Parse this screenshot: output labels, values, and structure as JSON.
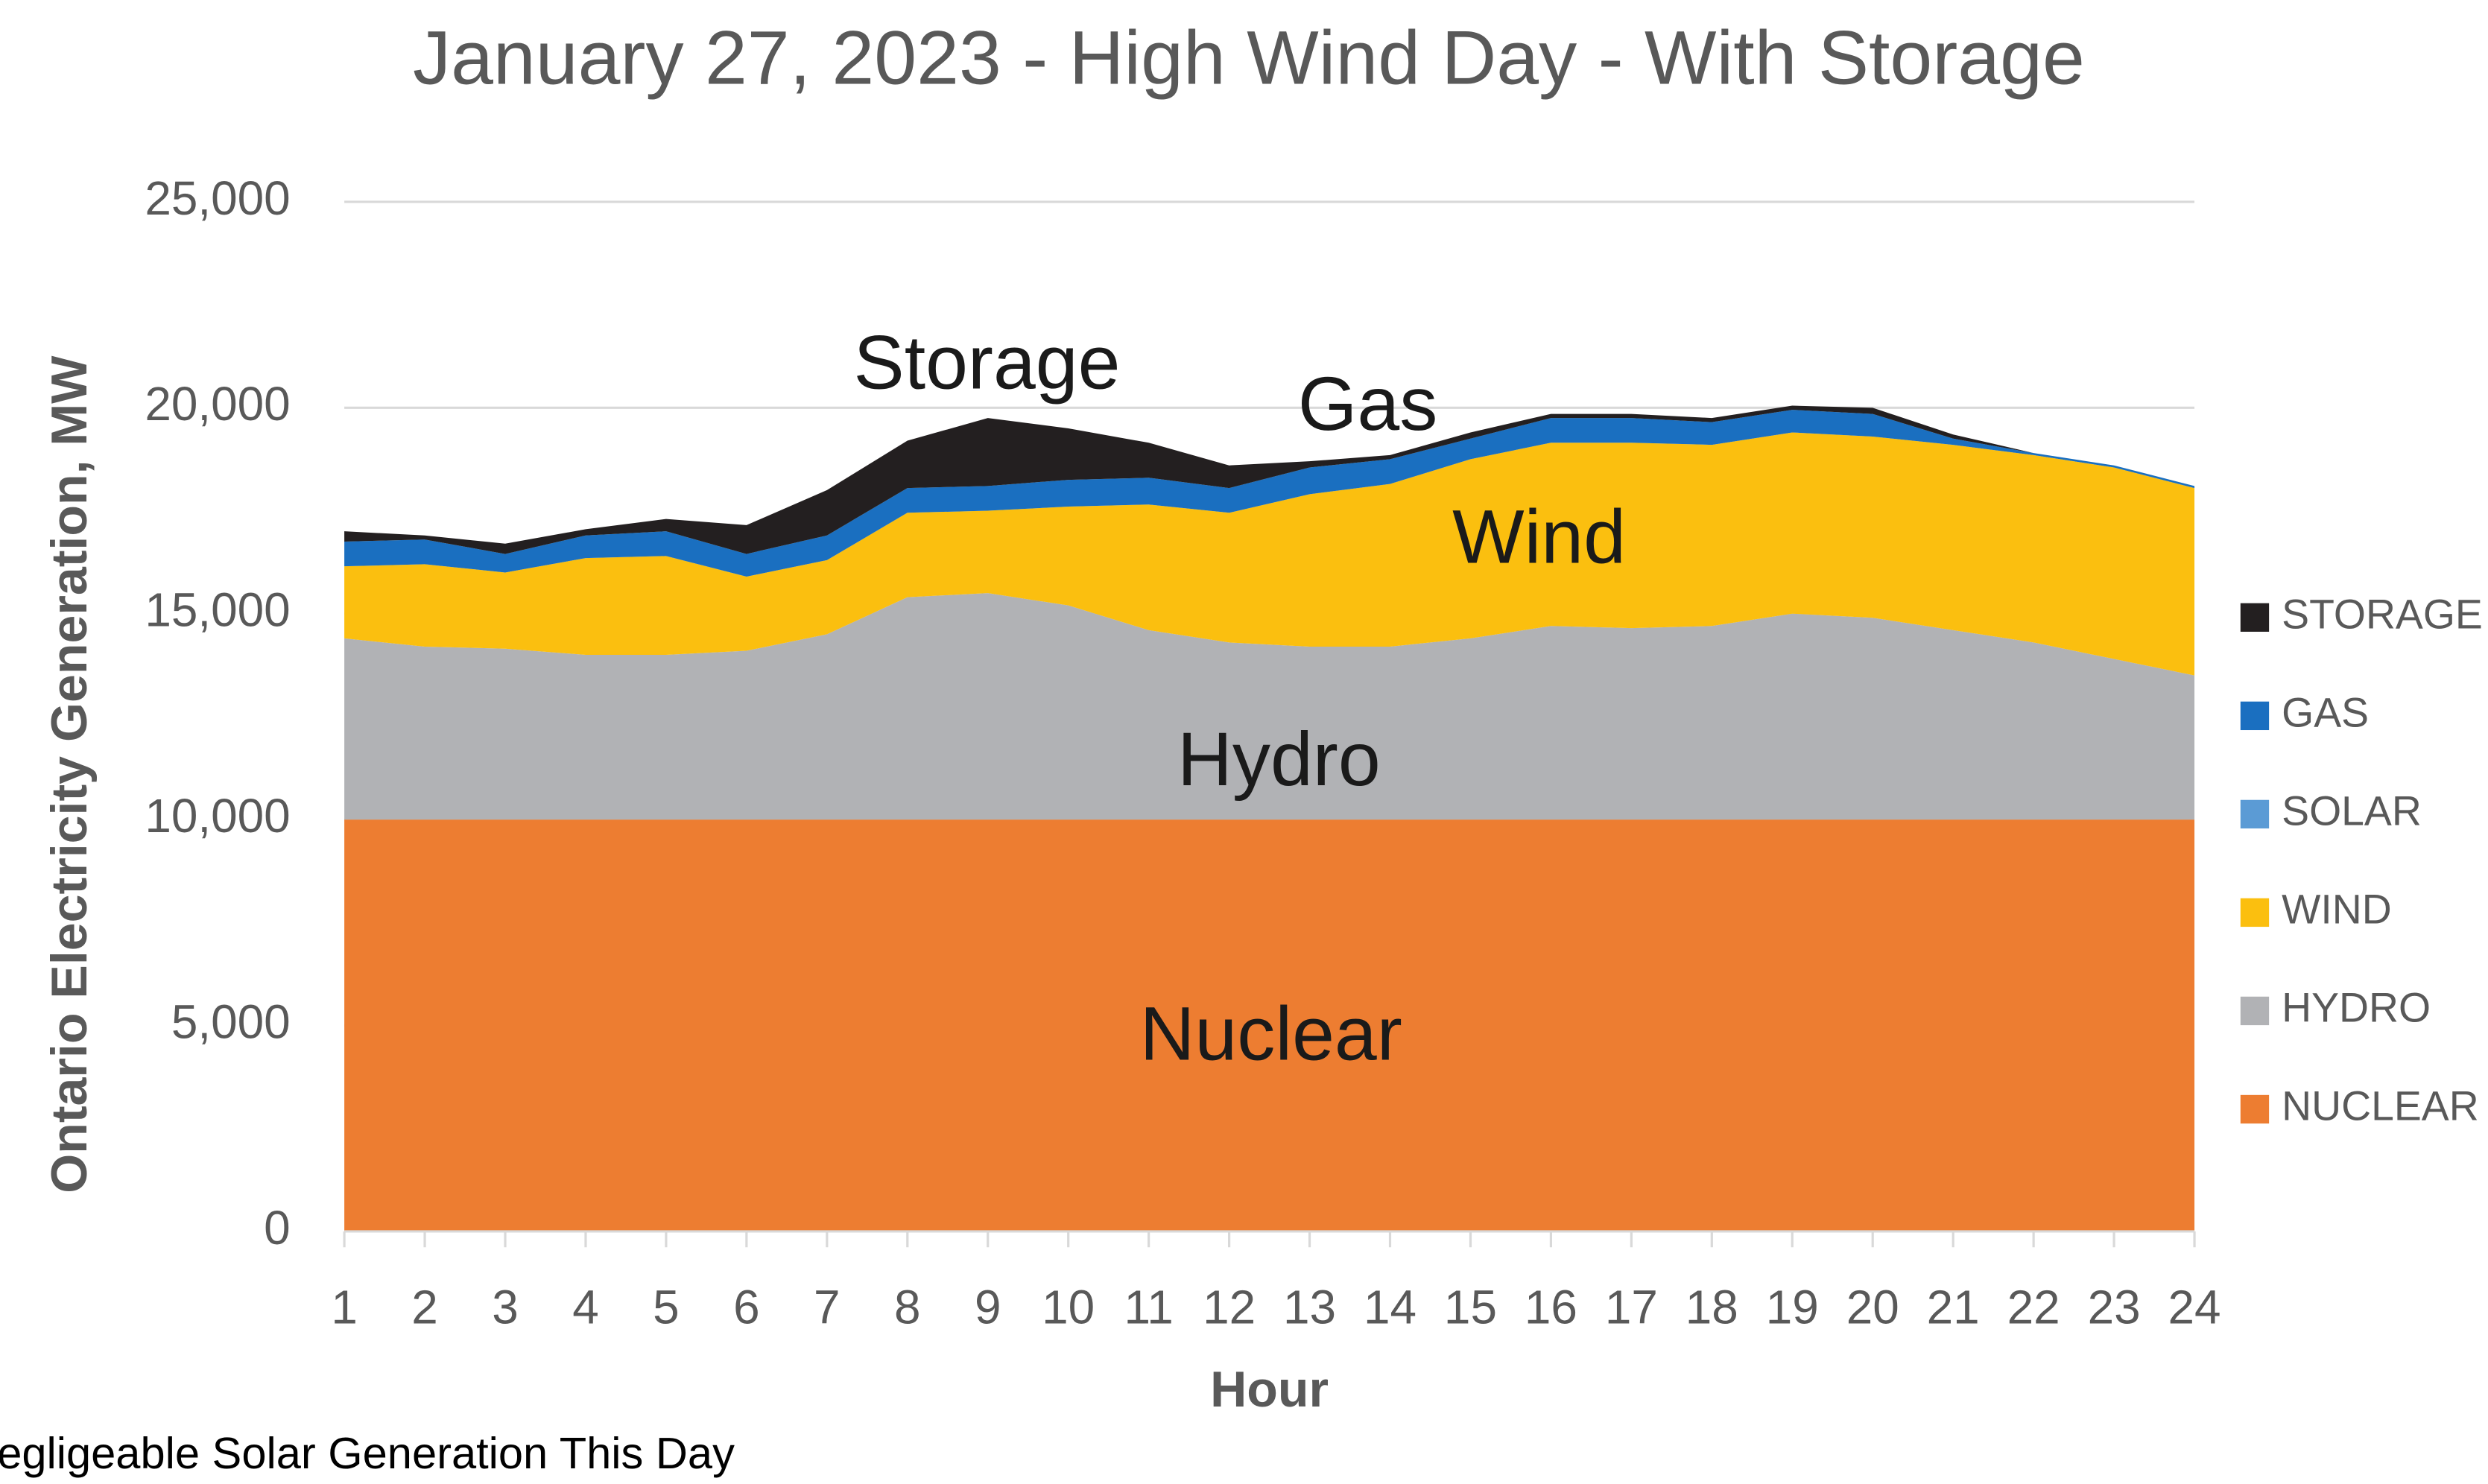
{
  "chart_data": {
    "type": "stacked_area",
    "title": "January 27, 2023 - High Wind Day - With Storage",
    "x_label": "Hour",
    "y_label": "Ontario Electricity Generation, MW",
    "x": [
      1,
      2,
      3,
      4,
      5,
      6,
      7,
      8,
      9,
      10,
      11,
      12,
      13,
      14,
      15,
      16,
      17,
      18,
      19,
      20,
      21,
      22,
      23,
      24
    ],
    "xlim": [
      1,
      24
    ],
    "xticks": [
      1,
      2,
      3,
      4,
      5,
      6,
      7,
      8,
      9,
      10,
      11,
      12,
      13,
      14,
      15,
      16,
      17,
      18,
      19,
      20,
      21,
      22,
      23,
      24
    ],
    "ylim": [
      0,
      25000
    ],
    "yticks": [
      0,
      {
        "value": 5000,
        "label": "5,000"
      },
      {
        "value": 10000,
        "label": "10,000"
      },
      {
        "value": 15000,
        "label": "15,000"
      },
      {
        "value": 20000,
        "label": "20,000"
      },
      {
        "value": 25000,
        "label": "25,000"
      }
    ],
    "grid": true,
    "legend": "right",
    "series": [
      {
        "name": "NUCLEAR",
        "color": "#ed7d31",
        "values": [
          10000,
          10000,
          10000,
          10000,
          10000,
          10000,
          10000,
          10000,
          10000,
          10000,
          10000,
          10000,
          10000,
          10000,
          10000,
          10000,
          10000,
          10000,
          10000,
          10000,
          10000,
          10000,
          10000,
          10000
        ]
      },
      {
        "name": "HYDRO",
        "color": "#b1b2b5",
        "values": [
          4400,
          4200,
          4150,
          4000,
          4000,
          4100,
          4500,
          5400,
          5500,
          5200,
          4600,
          4300,
          4200,
          4200,
          4400,
          4700,
          4650,
          4700,
          5000,
          4900,
          4600,
          4300,
          3900,
          3500
        ]
      },
      {
        "name": "WIND",
        "color": "#fbbf0f",
        "values": [
          1750,
          2000,
          1850,
          2350,
          2400,
          1800,
          1800,
          2050,
          2000,
          2400,
          3050,
          3150,
          3700,
          3950,
          4350,
          4450,
          4500,
          4400,
          4400,
          4400,
          4500,
          4550,
          4650,
          4550
        ]
      },
      {
        "name": "SOLAR",
        "color": "#5b9bd5",
        "values": [
          0,
          0,
          0,
          0,
          0,
          0,
          0,
          0,
          0,
          0,
          0,
          0,
          0,
          0,
          0,
          0,
          0,
          0,
          0,
          0,
          0,
          0,
          0,
          0
        ]
      },
      {
        "name": "GAS",
        "color": "#1a6fc0",
        "values": [
          600,
          600,
          450,
          550,
          600,
          550,
          600,
          600,
          600,
          650,
          650,
          600,
          650,
          600,
          500,
          600,
          600,
          550,
          550,
          550,
          150,
          50,
          50,
          50
        ]
      },
      {
        "name": "STORAGE",
        "color": "#231f20",
        "values": [
          250,
          100,
          250,
          150,
          300,
          700,
          1100,
          1150,
          1650,
          1250,
          850,
          550,
          150,
          100,
          150,
          100,
          100,
          100,
          100,
          150,
          100,
          0,
          0,
          0
        ]
      }
    ],
    "annotations": [
      "Storage",
      "Gas",
      "Wind",
      "Hydro",
      "Nuclear"
    ],
    "footnote": "Negligeable Solar Generation This Day"
  }
}
